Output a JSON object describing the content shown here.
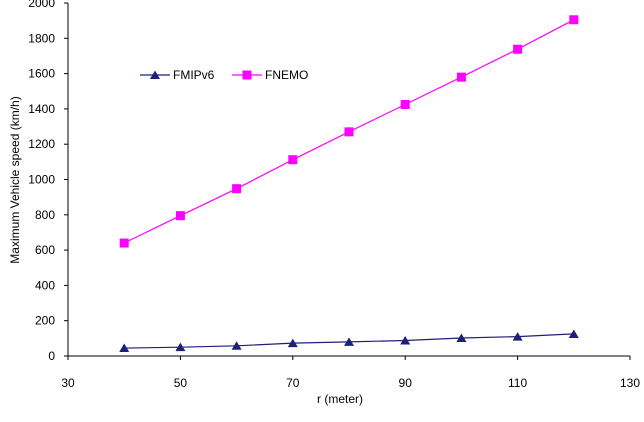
{
  "chart_data": {
    "type": "line",
    "xlabel": "r (meter)",
    "ylabel": "Maximum Vehicle speed (km/h)",
    "xlim": [
      30,
      130
    ],
    "ylim": [
      0,
      2000
    ],
    "x_ticks": [
      30,
      50,
      70,
      90,
      110,
      130
    ],
    "y_ticks": [
      0,
      200,
      400,
      600,
      800,
      1000,
      1200,
      1400,
      1600,
      1800,
      2000
    ],
    "grid": false,
    "legend_position": "upper-left inside plot",
    "x": [
      40,
      50,
      60,
      70,
      80,
      90,
      100,
      110,
      120
    ],
    "series": [
      {
        "name": "FMIPv6",
        "color": "#1f1f7a",
        "marker": "triangle",
        "values": [
          45,
          50,
          58,
          73,
          80,
          88,
          102,
          110,
          125
        ]
      },
      {
        "name": "FNEMO",
        "color": "#ff00ff",
        "marker": "square",
        "values": [
          640,
          795,
          948,
          1112,
          1270,
          1425,
          1580,
          1738,
          1905
        ]
      }
    ]
  }
}
